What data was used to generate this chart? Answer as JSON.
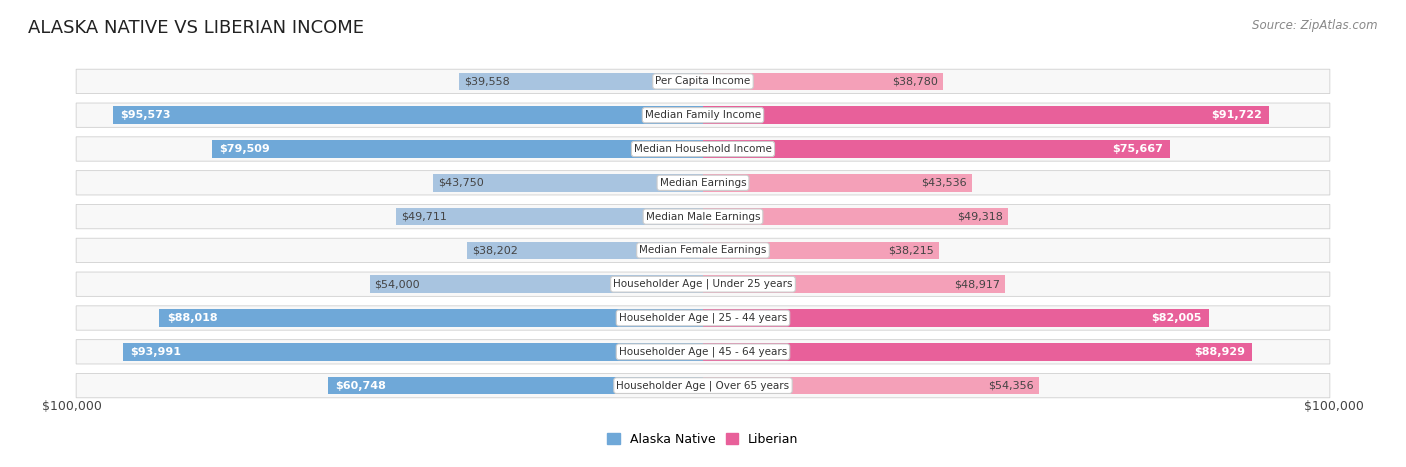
{
  "title": "ALASKA NATIVE VS LIBERIAN INCOME",
  "source": "Source: ZipAtlas.com",
  "categories": [
    "Per Capita Income",
    "Median Family Income",
    "Median Household Income",
    "Median Earnings",
    "Median Male Earnings",
    "Median Female Earnings",
    "Householder Age | Under 25 years",
    "Householder Age | 25 - 44 years",
    "Householder Age | 45 - 64 years",
    "Householder Age | Over 65 years"
  ],
  "alaska_values": [
    39558,
    95573,
    79509,
    43750,
    49711,
    38202,
    54000,
    88018,
    93991,
    60748
  ],
  "liberian_values": [
    38780,
    91722,
    75667,
    43536,
    49318,
    38215,
    48917,
    82005,
    88929,
    54356
  ],
  "alaska_labels": [
    "$39,558",
    "$95,573",
    "$79,509",
    "$43,750",
    "$49,711",
    "$38,202",
    "$54,000",
    "$88,018",
    "$93,991",
    "$60,748"
  ],
  "liberian_labels": [
    "$38,780",
    "$91,722",
    "$75,667",
    "$43,536",
    "$49,318",
    "$38,215",
    "$48,917",
    "$82,005",
    "$88,929",
    "$54,356"
  ],
  "alaska_color_light": "#a8c4e0",
  "liberian_color_light": "#f4a0b8",
  "alaska_color_solid": "#6fa8d8",
  "liberian_color_solid": "#e8609a",
  "max_value": 100000,
  "bg_color": "#ffffff",
  "row_bg_even": "#f5f5f5",
  "row_bg_odd": "#ebebeb",
  "legend_alaska": "Alaska Native",
  "legend_liberian": "Liberian",
  "x_label_left": "$100,000",
  "x_label_right": "$100,000",
  "title_fontsize": 13,
  "source_fontsize": 8.5,
  "label_fontsize": 8,
  "category_fontsize": 7.5,
  "solid_threshold": 60000
}
